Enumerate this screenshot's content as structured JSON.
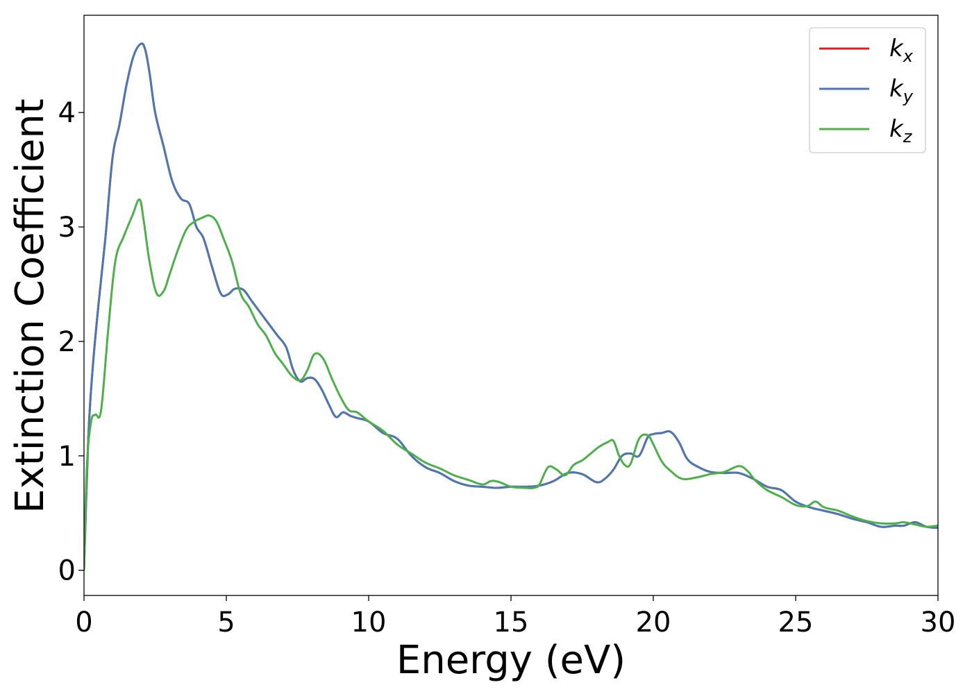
{
  "chart_data": {
    "type": "line",
    "xlabel": "Energy (eV)",
    "ylabel": "Extinction Coefficient",
    "xlim": [
      0,
      30
    ],
    "ylim": [
      -0.22,
      4.85
    ],
    "xticks": [
      0,
      5,
      10,
      15,
      20,
      25,
      30
    ],
    "xtick_labels": [
      "0",
      "5",
      "10",
      "15",
      "20",
      "25",
      "30"
    ],
    "yticks": [
      0,
      1,
      2,
      3,
      4
    ],
    "ytick_labels": [
      "0",
      "1",
      "2",
      "3",
      "4"
    ],
    "grid": false,
    "legend_position": "top-right",
    "series": [
      {
        "name": "k_x",
        "legend_base": "k",
        "legend_sub": "x",
        "color": "#e41a1c",
        "x": [
          0,
          0.15,
          0.3,
          0.5,
          0.75,
          1.0,
          1.25,
          1.5,
          1.75,
          2.0,
          2.15,
          2.3,
          2.5,
          2.8,
          3.1,
          3.4,
          3.7,
          3.95,
          4.2,
          4.5,
          4.8,
          5.05,
          5.3,
          5.6,
          5.9,
          6.2,
          6.5,
          6.8,
          7.1,
          7.35,
          7.6,
          7.85,
          8.1,
          8.35,
          8.6,
          8.85,
          9.1,
          9.35,
          9.6,
          10.0,
          10.5,
          11.0,
          11.5,
          12.0,
          12.5,
          13.0,
          13.5,
          14.0,
          14.5,
          15.0,
          15.5,
          16.0,
          16.5,
          17.0,
          17.5,
          18.0,
          18.3,
          18.6,
          18.9,
          19.2,
          19.5,
          19.8,
          20.0,
          20.3,
          20.6,
          20.9,
          21.2,
          21.6,
          22.0,
          22.5,
          23.0,
          23.5,
          24.0,
          24.5,
          25.0,
          25.5,
          26.0,
          26.5,
          27.0,
          27.5,
          28.0,
          28.5,
          28.8,
          29.2,
          29.6,
          30.0
        ],
        "y": [
          0.0,
          1.15,
          1.75,
          2.3,
          2.9,
          3.6,
          3.9,
          4.25,
          4.5,
          4.6,
          4.55,
          4.35,
          4.0,
          3.7,
          3.4,
          3.25,
          3.2,
          3.0,
          2.9,
          2.65,
          2.42,
          2.41,
          2.46,
          2.45,
          2.35,
          2.25,
          2.15,
          2.05,
          1.95,
          1.75,
          1.65,
          1.68,
          1.67,
          1.58,
          1.45,
          1.34,
          1.38,
          1.35,
          1.33,
          1.3,
          1.2,
          1.15,
          1.0,
          0.9,
          0.85,
          0.78,
          0.74,
          0.73,
          0.72,
          0.73,
          0.73,
          0.74,
          0.78,
          0.85,
          0.84,
          0.77,
          0.8,
          0.88,
          1.0,
          1.02,
          1.0,
          1.16,
          1.19,
          1.2,
          1.21,
          1.12,
          0.97,
          0.9,
          0.86,
          0.85,
          0.85,
          0.8,
          0.73,
          0.7,
          0.6,
          0.55,
          0.52,
          0.49,
          0.45,
          0.42,
          0.38,
          0.39,
          0.39,
          0.42,
          0.38,
          0.37
        ]
      },
      {
        "name": "k_y",
        "legend_base": "k",
        "legend_sub": "y",
        "color": "#4a78b1",
        "x": [
          0,
          0.15,
          0.3,
          0.5,
          0.75,
          1.0,
          1.25,
          1.5,
          1.75,
          2.0,
          2.15,
          2.3,
          2.5,
          2.8,
          3.1,
          3.4,
          3.7,
          3.95,
          4.2,
          4.5,
          4.8,
          5.05,
          5.3,
          5.6,
          5.9,
          6.2,
          6.5,
          6.8,
          7.1,
          7.35,
          7.6,
          7.85,
          8.1,
          8.35,
          8.6,
          8.85,
          9.1,
          9.35,
          9.6,
          10.0,
          10.5,
          11.0,
          11.5,
          12.0,
          12.5,
          13.0,
          13.5,
          14.0,
          14.5,
          15.0,
          15.5,
          16.0,
          16.5,
          17.0,
          17.5,
          18.0,
          18.3,
          18.6,
          18.9,
          19.2,
          19.5,
          19.8,
          20.0,
          20.3,
          20.6,
          20.9,
          21.2,
          21.6,
          22.0,
          22.5,
          23.0,
          23.5,
          24.0,
          24.5,
          25.0,
          25.5,
          26.0,
          26.5,
          27.0,
          27.5,
          28.0,
          28.5,
          28.8,
          29.2,
          29.6,
          30.0
        ],
        "y": [
          0.0,
          1.15,
          1.75,
          2.3,
          2.9,
          3.6,
          3.9,
          4.25,
          4.5,
          4.6,
          4.55,
          4.35,
          4.0,
          3.7,
          3.4,
          3.25,
          3.2,
          3.0,
          2.9,
          2.65,
          2.42,
          2.41,
          2.46,
          2.45,
          2.35,
          2.25,
          2.15,
          2.05,
          1.95,
          1.75,
          1.65,
          1.68,
          1.67,
          1.58,
          1.45,
          1.34,
          1.38,
          1.35,
          1.33,
          1.3,
          1.2,
          1.15,
          1.0,
          0.9,
          0.85,
          0.78,
          0.74,
          0.73,
          0.72,
          0.73,
          0.73,
          0.74,
          0.78,
          0.85,
          0.84,
          0.77,
          0.8,
          0.88,
          1.0,
          1.02,
          1.0,
          1.16,
          1.19,
          1.2,
          1.21,
          1.12,
          0.97,
          0.9,
          0.86,
          0.85,
          0.85,
          0.8,
          0.73,
          0.7,
          0.6,
          0.55,
          0.52,
          0.49,
          0.45,
          0.42,
          0.38,
          0.39,
          0.39,
          0.42,
          0.38,
          0.37
        ]
      },
      {
        "name": "k_z",
        "legend_base": "k",
        "legend_sub": "z",
        "color": "#4daf4a",
        "x": [
          0,
          0.1,
          0.25,
          0.4,
          0.6,
          0.85,
          1.1,
          1.4,
          1.7,
          1.95,
          2.1,
          2.3,
          2.55,
          2.8,
          3.0,
          3.3,
          3.6,
          3.9,
          4.15,
          4.4,
          4.65,
          4.9,
          5.2,
          5.5,
          5.8,
          6.1,
          6.4,
          6.7,
          7.0,
          7.3,
          7.6,
          7.85,
          8.1,
          8.4,
          8.7,
          9.0,
          9.3,
          9.6,
          10.0,
          10.5,
          11.0,
          11.5,
          12.0,
          12.5,
          13.0,
          13.5,
          14.0,
          14.3,
          14.6,
          15.0,
          15.5,
          15.8,
          16.0,
          16.3,
          16.6,
          16.9,
          17.2,
          17.5,
          17.8,
          18.1,
          18.4,
          18.6,
          18.8,
          19.0,
          19.2,
          19.5,
          19.8,
          20.0,
          20.3,
          20.6,
          21.0,
          21.5,
          22.0,
          22.5,
          23.0,
          23.3,
          23.6,
          24.0,
          24.5,
          25.0,
          25.4,
          25.7,
          26.0,
          26.5,
          27.0,
          27.5,
          28.0,
          28.5,
          28.8,
          29.2,
          29.6,
          30.0
        ],
        "y": [
          0.0,
          0.9,
          1.3,
          1.36,
          1.4,
          2.1,
          2.7,
          2.92,
          3.1,
          3.24,
          3.05,
          2.7,
          2.42,
          2.44,
          2.58,
          2.8,
          2.98,
          3.05,
          3.08,
          3.1,
          3.05,
          2.9,
          2.7,
          2.42,
          2.3,
          2.15,
          2.05,
          1.9,
          1.8,
          1.7,
          1.66,
          1.75,
          1.89,
          1.85,
          1.68,
          1.52,
          1.4,
          1.38,
          1.3,
          1.22,
          1.1,
          1.02,
          0.94,
          0.89,
          0.83,
          0.79,
          0.75,
          0.78,
          0.77,
          0.73,
          0.72,
          0.72,
          0.75,
          0.9,
          0.88,
          0.83,
          0.92,
          0.96,
          1.02,
          1.08,
          1.12,
          1.13,
          1.0,
          0.92,
          0.93,
          1.15,
          1.18,
          1.1,
          0.95,
          0.87,
          0.8,
          0.81,
          0.84,
          0.86,
          0.91,
          0.87,
          0.78,
          0.7,
          0.64,
          0.57,
          0.56,
          0.6,
          0.55,
          0.52,
          0.47,
          0.43,
          0.41,
          0.41,
          0.42,
          0.4,
          0.38,
          0.39
        ]
      }
    ]
  }
}
